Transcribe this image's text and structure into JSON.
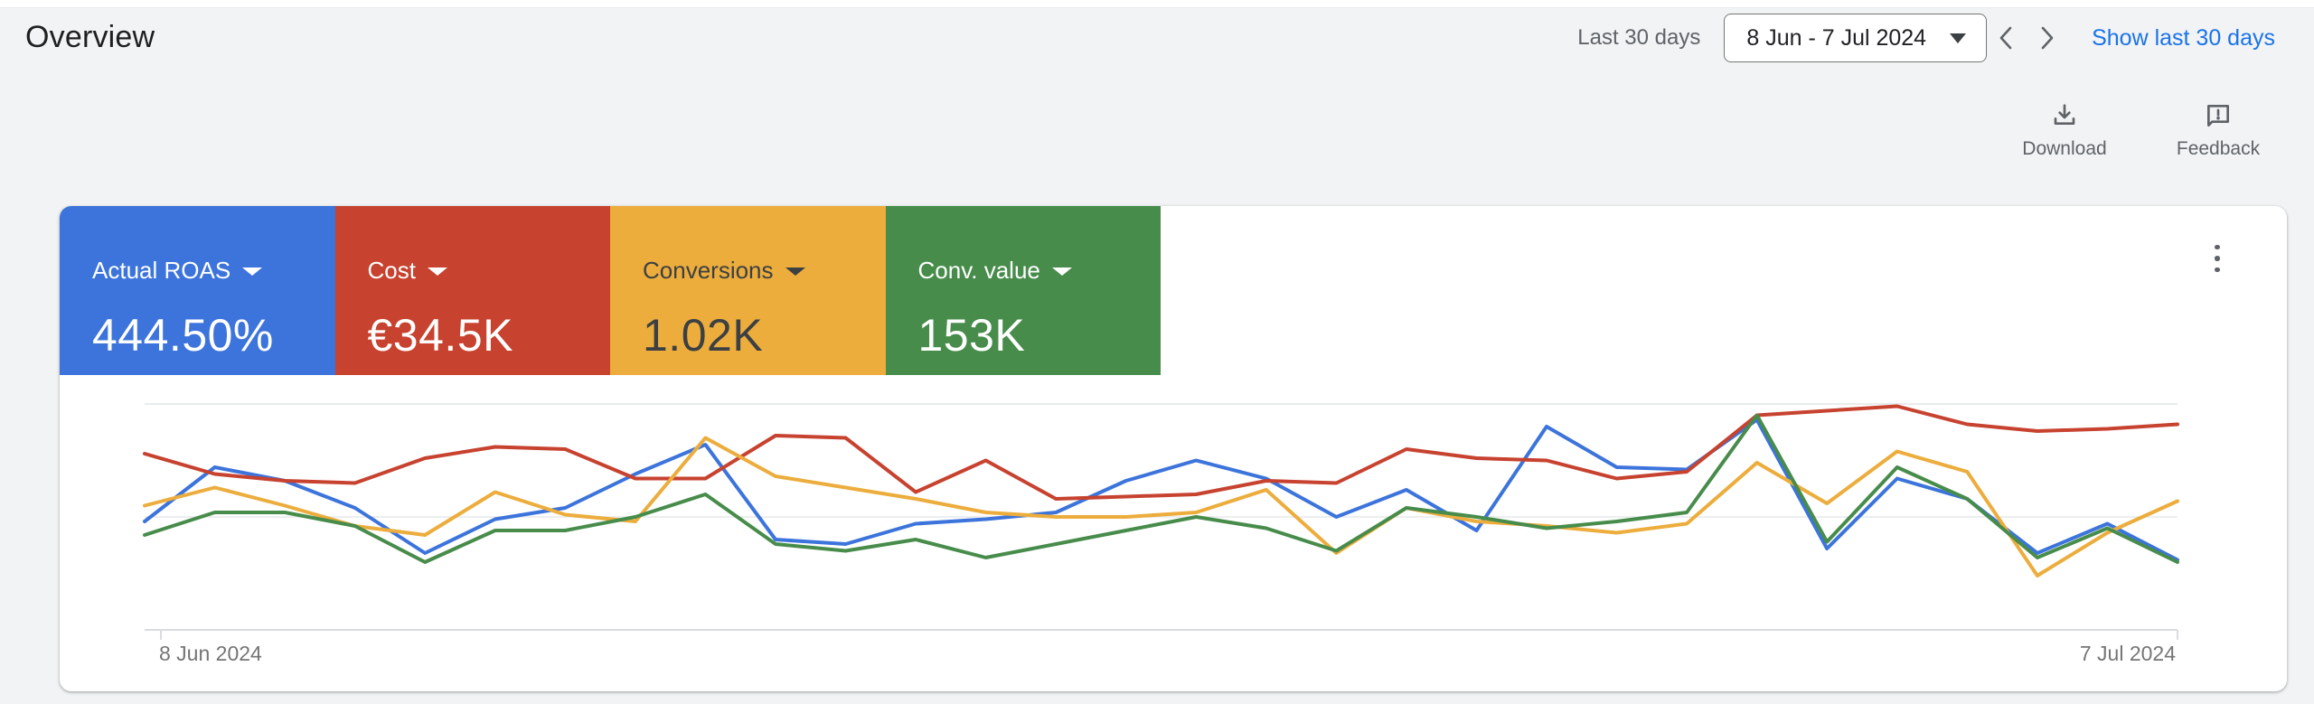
{
  "page": {
    "title": "Overview"
  },
  "header": {
    "range_label": "Last 30 days",
    "date_range": "8 Jun - 7 Jul 2024",
    "show_link": "Show last 30 days"
  },
  "actions": {
    "download": "Download",
    "feedback": "Feedback"
  },
  "card": {
    "metrics": [
      {
        "label": "Actual ROAS",
        "value": "444.50%",
        "color": "#3c74dc",
        "text_color": "#ffffff"
      },
      {
        "label": "Cost",
        "value": "€34.5K",
        "color": "#c7422f",
        "text_color": "#ffffff"
      },
      {
        "label": "Conversions",
        "value": "1.02K",
        "color": "#ecad3d",
        "text_color": "#3c4043"
      },
      {
        "label": "Conv. value",
        "value": "153K",
        "color": "#478c4b",
        "text_color": "#ffffff"
      }
    ]
  },
  "chart_data": {
    "type": "line",
    "title": "",
    "xlabel": "",
    "ylabel": "",
    "x_axis": {
      "start_label": "8 Jun 2024",
      "end_label": "7 Jul 2024",
      "points": 30
    },
    "ylim": [
      0,
      100
    ],
    "value_scale": "normalized 0-100 of plot height (chart shows no y-axis tick labels)",
    "grid": true,
    "legend": "none (series keyed by tile colors above chart)",
    "series": [
      {
        "name": "Actual ROAS",
        "color": "#3c74dc",
        "values": [
          48,
          72,
          66,
          54,
          34,
          49,
          54,
          69,
          82,
          40,
          38,
          47,
          49,
          52,
          66,
          75,
          67,
          50,
          62,
          44,
          90,
          72,
          71,
          93,
          36,
          67,
          58,
          34,
          47,
          31
        ]
      },
      {
        "name": "Cost",
        "color": "#c7422f",
        "values": [
          78,
          69,
          66,
          65,
          76,
          81,
          80,
          67,
          67,
          86,
          85,
          61,
          75,
          58,
          59,
          60,
          66,
          65,
          80,
          76,
          75,
          67,
          70,
          95,
          97,
          99,
          91,
          88,
          89,
          91
        ]
      },
      {
        "name": "Conversions",
        "color": "#ecad3d",
        "values": [
          55,
          63,
          55,
          46,
          42,
          61,
          51,
          48,
          85,
          68,
          63,
          58,
          52,
          50,
          50,
          52,
          62,
          34,
          54,
          48,
          46,
          43,
          47,
          74,
          56,
          79,
          70,
          24,
          43,
          57
        ]
      },
      {
        "name": "Conv. value",
        "color": "#478c4b",
        "values": [
          42,
          52,
          52,
          46,
          30,
          44,
          44,
          50,
          60,
          38,
          35,
          40,
          32,
          38,
          44,
          50,
          45,
          35,
          54,
          50,
          45,
          48,
          52,
          95,
          39,
          72,
          58,
          32,
          45,
          30
        ]
      }
    ]
  }
}
